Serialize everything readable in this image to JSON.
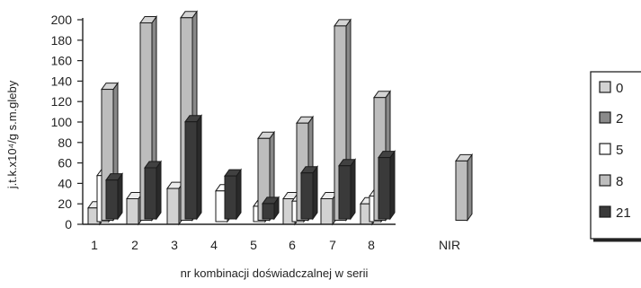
{
  "chart_data": {
    "type": "bar",
    "title": "",
    "xlabel": "nr kombinacji doświadczalnej w serii",
    "ylabel": "j.t.k.x10⁴/g s.m.gleby",
    "ylim": [
      0,
      200
    ],
    "yticks": [
      0,
      20,
      40,
      60,
      80,
      100,
      120,
      140,
      160,
      180,
      200
    ],
    "categories": [
      "1",
      "2",
      "3",
      "4",
      "5",
      "6",
      "7",
      "8",
      "NIR"
    ],
    "series": [
      {
        "name": "0",
        "values": [
          16,
          25,
          35,
          0,
          0,
          25,
          25,
          20,
          null
        ],
        "color": "#d2d2d2"
      },
      {
        "name": "2",
        "values": [
          0,
          0,
          0,
          0,
          0,
          0,
          0,
          0,
          null
        ],
        "color": "#8a8a8a"
      },
      {
        "name": "5",
        "values": [
          45,
          0,
          0,
          30,
          15,
          20,
          0,
          25,
          null
        ],
        "color": "#ffffff"
      },
      {
        "name": "8",
        "values": [
          128,
          193,
          198,
          0,
          80,
          95,
          190,
          120,
          58
        ],
        "color": "#bdbdbd"
      },
      {
        "name": "21",
        "values": [
          38,
          50,
          95,
          42,
          15,
          45,
          52,
          60,
          null
        ],
        "color": "#3a3a3a"
      }
    ],
    "grid": false,
    "legend_position": "right"
  }
}
